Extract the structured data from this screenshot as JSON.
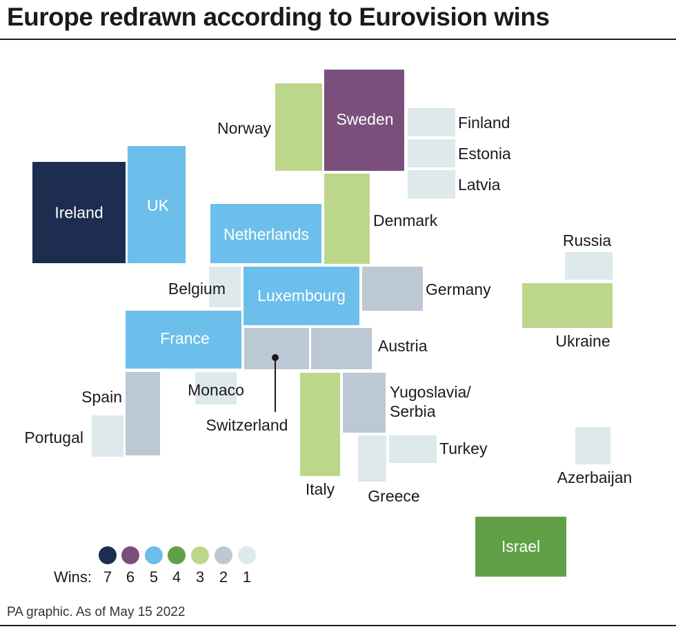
{
  "title": "Europe redrawn according to Eurovision wins",
  "footer": "PA graphic. As of May 15 2022",
  "legend": {
    "label": "Wins:",
    "items": [
      {
        "wins": "7",
        "color": "#1c2d4f"
      },
      {
        "wins": "6",
        "color": "#7b4f7c"
      },
      {
        "wins": "5",
        "color": "#6cbfea"
      },
      {
        "wins": "4",
        "color": "#61a046"
      },
      {
        "wins": "3",
        "color": "#bcd78b"
      },
      {
        "wins": "2",
        "color": "#bcc8d4"
      },
      {
        "wins": "1",
        "color": "#dde9eb"
      }
    ]
  },
  "countries": [
    {
      "name": "Ireland",
      "wins": 7
    },
    {
      "name": "UK",
      "wins": 5
    },
    {
      "name": "Norway",
      "wins": 3
    },
    {
      "name": "Sweden",
      "wins": 6
    },
    {
      "name": "Finland",
      "wins": 1
    },
    {
      "name": "Estonia",
      "wins": 1
    },
    {
      "name": "Latvia",
      "wins": 1
    },
    {
      "name": "Denmark",
      "wins": 3
    },
    {
      "name": "Netherlands",
      "wins": 5
    },
    {
      "name": "Belgium",
      "wins": 1
    },
    {
      "name": "Luxembourg",
      "wins": 5
    },
    {
      "name": "Germany",
      "wins": 2
    },
    {
      "name": "France",
      "wins": 5
    },
    {
      "name": "Switzerland",
      "wins": 2
    },
    {
      "name": "Austria",
      "wins": 2
    },
    {
      "name": "Monaco",
      "wins": 1
    },
    {
      "name": "Spain",
      "wins": 2
    },
    {
      "name": "Portugal",
      "wins": 1
    },
    {
      "name": "Italy",
      "wins": 3
    },
    {
      "name": "Yugoslavia/ Serbia",
      "wins": 2
    },
    {
      "name": "Greece",
      "wins": 1
    },
    {
      "name": "Turkey",
      "wins": 1
    },
    {
      "name": "Russia",
      "wins": 1
    },
    {
      "name": "Ukraine",
      "wins": 3
    },
    {
      "name": "Azerbaijan",
      "wins": 1
    },
    {
      "name": "Israel",
      "wins": 4
    }
  ]
}
